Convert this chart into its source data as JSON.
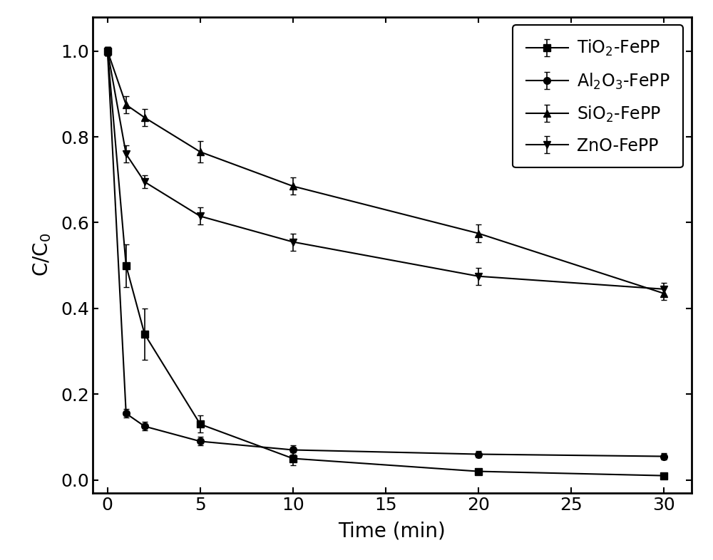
{
  "title": "",
  "xlabel": "Time (min)",
  "ylabel": "C/C$_0$",
  "xlim": [
    -0.8,
    31.5
  ],
  "ylim": [
    -0.03,
    1.08
  ],
  "xticks": [
    0,
    5,
    10,
    15,
    20,
    25,
    30
  ],
  "yticks": [
    0.0,
    0.2,
    0.4,
    0.6,
    0.8,
    1.0
  ],
  "series": [
    {
      "label": "TiO$_2$-FePP",
      "x": [
        0,
        1,
        2,
        5,
        10,
        20,
        30
      ],
      "y": [
        1.0,
        0.5,
        0.34,
        0.13,
        0.05,
        0.02,
        0.01
      ],
      "yerr": [
        0.01,
        0.05,
        0.06,
        0.02,
        0.015,
        0.005,
        0.005
      ],
      "marker": "s",
      "linestyle": "-",
      "color": "#000000"
    },
    {
      "label": "Al$_2$O$_3$-FePP",
      "x": [
        0,
        1,
        2,
        5,
        10,
        20,
        30
      ],
      "y": [
        1.0,
        0.155,
        0.125,
        0.09,
        0.07,
        0.06,
        0.055
      ],
      "yerr": [
        0.01,
        0.01,
        0.01,
        0.01,
        0.01,
        0.008,
        0.008
      ],
      "marker": "o",
      "linestyle": "-",
      "color": "#000000"
    },
    {
      "label": "SiO$_2$-FePP",
      "x": [
        0,
        1,
        2,
        5,
        10,
        20,
        30
      ],
      "y": [
        1.0,
        0.875,
        0.845,
        0.765,
        0.685,
        0.575,
        0.435
      ],
      "yerr": [
        0.01,
        0.02,
        0.02,
        0.025,
        0.02,
        0.02,
        0.015
      ],
      "marker": "^",
      "linestyle": "-",
      "color": "#000000"
    },
    {
      "label": "ZnO-FePP",
      "x": [
        0,
        1,
        2,
        5,
        10,
        20,
        30
      ],
      "y": [
        1.0,
        0.76,
        0.695,
        0.615,
        0.555,
        0.475,
        0.445
      ],
      "yerr": [
        0.01,
        0.02,
        0.015,
        0.02,
        0.02,
        0.02,
        0.015
      ],
      "marker": "v",
      "linestyle": "-",
      "color": "#000000"
    }
  ],
  "legend_loc": "upper right",
  "markersize": 7,
  "linewidth": 1.5,
  "capsize": 3,
  "elinewidth": 1.2,
  "fontsize_ticks": 18,
  "fontsize_label": 20,
  "fontsize_legend": 17,
  "background_color": "#ffffff"
}
